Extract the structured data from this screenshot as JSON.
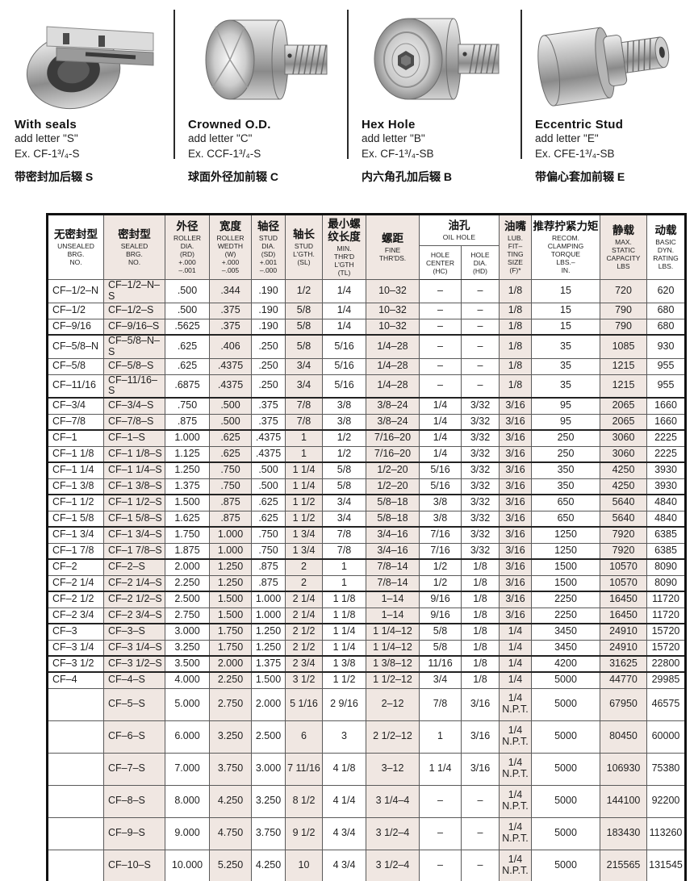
{
  "products": [
    {
      "title": "With  seals",
      "add_line": "add letter \"S\"",
      "example": "Ex. CF-1³/₄-S",
      "caption_zh": "带密封加后辍 S"
    },
    {
      "title": "Crowned O.D.",
      "add_line": "add letter \"C\"",
      "example": "Ex. CCF-1³/₄-S",
      "caption_zh": "球面外径加前辍 C"
    },
    {
      "title": "Hex Hole",
      "add_line": "add letter \"B\"",
      "example": "Ex. CF-1³/₄-SB",
      "caption_zh": "内六角孔加后辍 B"
    },
    {
      "title": "Eccentric Stud",
      "add_line": "add letter \"E\"",
      "example": "Ex. CFE-1³/₄-SB",
      "caption_zh": "带偏心套加前辍 E"
    }
  ],
  "table": {
    "headers": [
      {
        "zh": "无密封型",
        "en": "UNSEALED\nBRG.\nNO."
      },
      {
        "zh": "密封型",
        "en": "SEALED\nBRG.\nNO."
      },
      {
        "zh": "外径",
        "en": "ROLLER\nDIA.\n(RD)\n+.000\n–.001"
      },
      {
        "zh": "宽度",
        "en": "ROLLER\nWEDTH\n(W)\n+.000\n–.005"
      },
      {
        "zh": "轴径",
        "en": "STUD\nDIA.\n(SD)\n+.001\n–.000"
      },
      {
        "zh": "轴长",
        "en": "STUD\nL'GTH.\n(SL)"
      },
      {
        "zh": "最小螺\n纹长度",
        "en": "MIN.\nTHR'D\nL'GTH\n(TL)"
      },
      {
        "zh": "螺距",
        "en": "FINE\nTHR'DS."
      },
      {
        "zh": "油孔",
        "en": "OIL HOLE",
        "sub": [
          {
            "en": "HOLE\nCENTER\n(HC)"
          },
          {
            "en": "HOLE\nDIA.\n(HD)"
          }
        ]
      },
      {
        "zh": "油嘴",
        "en": "LUB.\nFIT–\nTING\nSIZE\n(F)*"
      },
      {
        "zh": "推荐拧紧力矩",
        "en": "RECOM.\nCLAMPING\nTORQUE\nLBS.–\nIN."
      },
      {
        "zh": "静载",
        "en": "MAX.\nSTATIC\nCAPACITY\nLBS"
      },
      {
        "zh": "动载",
        "en": "BASIC\nDYN.\nRATING\nLBS."
      }
    ],
    "group_separators_after": [
      3,
      6,
      8,
      10,
      12,
      14,
      16,
      18,
      20,
      22,
      23
    ],
    "rows": [
      [
        "CF–1/2–N",
        "CF–1/2–N–S",
        ".500",
        ".344",
        ".190",
        "1/2",
        "1/4",
        "10–32",
        "–",
        "–",
        "1/8",
        "15",
        "720",
        "620"
      ],
      [
        "CF–1/2",
        "CF–1/2–S",
        ".500",
        ".375",
        ".190",
        "5/8",
        "1/4",
        "10–32",
        "–",
        "–",
        "1/8",
        "15",
        "790",
        "680"
      ],
      [
        "CF–9/16",
        "CF–9/16–S",
        ".5625",
        ".375",
        ".190",
        "5/8",
        "1/4",
        "10–32",
        "–",
        "–",
        "1/8",
        "15",
        "790",
        "680"
      ],
      [
        "CF–5/8–N",
        "CF–5/8–N–S",
        ".625",
        ".406",
        ".250",
        "5/8",
        "5/16",
        "1/4–28",
        "–",
        "–",
        "1/8",
        "35",
        "1085",
        "930"
      ],
      [
        "CF–5/8",
        "CF–5/8–S",
        ".625",
        ".4375",
        ".250",
        "3/4",
        "5/16",
        "1/4–28",
        "–",
        "–",
        "1/8",
        "35",
        "1215",
        "955"
      ],
      [
        "CF–11/16",
        "CF–11/16–S",
        ".6875",
        ".4375",
        ".250",
        "3/4",
        "5/16",
        "1/4–28",
        "–",
        "–",
        "1/8",
        "35",
        "1215",
        "955"
      ],
      [
        "CF–3/4",
        "CF–3/4–S",
        ".750",
        ".500",
        ".375",
        "7/8",
        "3/8",
        "3/8–24",
        "1/4",
        "3/32",
        "3/16",
        "95",
        "2065",
        "1660"
      ],
      [
        "CF–7/8",
        "CF–7/8–S",
        ".875",
        ".500",
        ".375",
        "7/8",
        "3/8",
        "3/8–24",
        "1/4",
        "3/32",
        "3/16",
        "95",
        "2065",
        "1660"
      ],
      [
        "CF–1",
        "CF–1–S",
        "1.000",
        ".625",
        ".4375",
        "1",
        "1/2",
        "7/16–20",
        "1/4",
        "3/32",
        "3/16",
        "250",
        "3060",
        "2225"
      ],
      [
        "CF–1 1/8",
        "CF–1 1/8–S",
        "1.125",
        ".625",
        ".4375",
        "1",
        "1/2",
        "7/16–20",
        "1/4",
        "3/32",
        "3/16",
        "250",
        "3060",
        "2225"
      ],
      [
        "CF–1 1/4",
        "CF–1 1/4–S",
        "1.250",
        ".750",
        ".500",
        "1 1/4",
        "5/8",
        "1/2–20",
        "5/16",
        "3/32",
        "3/16",
        "350",
        "4250",
        "3930"
      ],
      [
        "CF–1 3/8",
        "CF–1 3/8–S",
        "1.375",
        ".750",
        ".500",
        "1 1/4",
        "5/8",
        "1/2–20",
        "5/16",
        "3/32",
        "3/16",
        "350",
        "4250",
        "3930"
      ],
      [
        "CF–1 1/2",
        "CF–1 1/2–S",
        "1.500",
        ".875",
        ".625",
        "1 1/2",
        "3/4",
        "5/8–18",
        "3/8",
        "3/32",
        "3/16",
        "650",
        "5640",
        "4840"
      ],
      [
        "CF–1 5/8",
        "CF–1 5/8–S",
        "1.625",
        ".875",
        ".625",
        "1 1/2",
        "3/4",
        "5/8–18",
        "3/8",
        "3/32",
        "3/16",
        "650",
        "5640",
        "4840"
      ],
      [
        "CF–1 3/4",
        "CF–1 3/4–S",
        "1.750",
        "1.000",
        ".750",
        "1 3/4",
        "7/8",
        "3/4–16",
        "7/16",
        "3/32",
        "3/16",
        "1250",
        "7920",
        "6385"
      ],
      [
        "CF–1 7/8",
        "CF–1 7/8–S",
        "1.875",
        "1.000",
        ".750",
        "1 3/4",
        "7/8",
        "3/4–16",
        "7/16",
        "3/32",
        "3/16",
        "1250",
        "7920",
        "6385"
      ],
      [
        "CF–2",
        "CF–2–S",
        "2.000",
        "1.250",
        ".875",
        "2",
        "1",
        "7/8–14",
        "1/2",
        "1/8",
        "3/16",
        "1500",
        "10570",
        "8090"
      ],
      [
        "CF–2 1/4",
        "CF–2 1/4–S",
        "2.250",
        "1.250",
        ".875",
        "2",
        "1",
        "7/8–14",
        "1/2",
        "1/8",
        "3/16",
        "1500",
        "10570",
        "8090"
      ],
      [
        "CF–2 1/2",
        "CF–2 1/2–S",
        "2.500",
        "1.500",
        "1.000",
        "2 1/4",
        "1 1/8",
        "1–14",
        "9/16",
        "1/8",
        "3/16",
        "2250",
        "16450",
        "11720"
      ],
      [
        "CF–2 3/4",
        "CF–2 3/4–S",
        "2.750",
        "1.500",
        "1.000",
        "2 1/4",
        "1 1/8",
        "1–14",
        "9/16",
        "1/8",
        "3/16",
        "2250",
        "16450",
        "11720"
      ],
      [
        "CF–3",
        "CF–3–S",
        "3.000",
        "1.750",
        "1.250",
        "2 1/2",
        "1 1/4",
        "1 1/4–12",
        "5/8",
        "1/8",
        "1/4",
        "3450",
        "24910",
        "15720"
      ],
      [
        "CF–3 1/4",
        "CF–3 1/4–S",
        "3.250",
        "1.750",
        "1.250",
        "2 1/2",
        "1 1/4",
        "1 1/4–12",
        "5/8",
        "1/8",
        "1/4",
        "3450",
        "24910",
        "15720"
      ],
      [
        "CF–3 1/2",
        "CF–3 1/2–S",
        "3.500",
        "2.000",
        "1.375",
        "2 3/4",
        "1 3/8",
        "1 3/8–12",
        "11/16",
        "1/8",
        "1/4",
        "4200",
        "31625",
        "22800"
      ],
      [
        "CF–4",
        "CF–4–S",
        "4.000",
        "2.250",
        "1.500",
        "3 1/2",
        "1 1/2",
        "1 1/2–12",
        "3/4",
        "1/8",
        "1/4",
        "5000",
        "44770",
        "29985"
      ],
      [
        "",
        "CF–5–S",
        "5.000",
        "2.750",
        "2.000",
        "5 1/16",
        "2 9/16",
        "2–12",
        "7/8",
        "3/16",
        "1/4\nN.P.T.",
        "5000",
        "67950",
        "46575"
      ],
      [
        "",
        "CF–6–S",
        "6.000",
        "3.250",
        "2.500",
        "6",
        "3",
        "2 1/2–12",
        "1",
        "3/16",
        "1/4\nN.P.T.",
        "5000",
        "80450",
        "60000"
      ],
      [
        "",
        "CF–7–S",
        "7.000",
        "3.750",
        "3.000",
        "7 11/16",
        "4 1/8",
        "3–12",
        "1 1/4",
        "3/16",
        "1/4\nN.P.T.",
        "5000",
        "106930",
        "75380"
      ],
      [
        "",
        "CF–8–S",
        "8.000",
        "4.250",
        "3.250",
        "8 1/2",
        "4 1/4",
        "3 1/4–4",
        "–",
        "–",
        "1/4\nN.P.T.",
        "5000",
        "144100",
        "92200"
      ],
      [
        "",
        "CF–9–S",
        "9.000",
        "4.750",
        "3.750",
        "9 1/2",
        "4 3/4",
        "3 1/2–4",
        "–",
        "–",
        "1/4\nN.P.T.",
        "5000",
        "183430",
        "113260"
      ],
      [
        "",
        "CF–10–S",
        "10.000",
        "5.250",
        "4.250",
        "10",
        "4 3/4",
        "3 1/2–4",
        "–",
        "–",
        "1/4\nN.P.T.",
        "5000",
        "215565",
        "131545"
      ]
    ]
  },
  "colors": {
    "shaded_cell": "#f0e7e2",
    "table_border": "#111111",
    "grid_line": "#5a5a5a"
  }
}
